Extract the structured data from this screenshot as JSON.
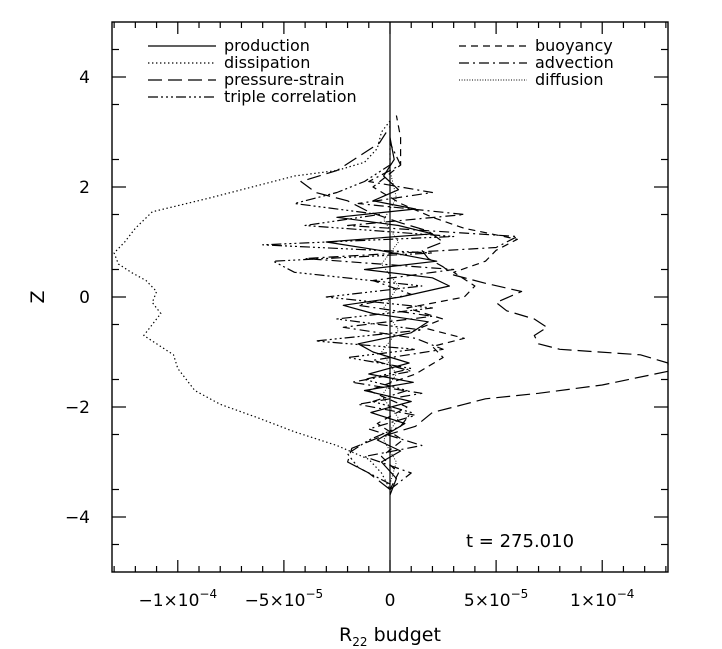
{
  "chart_data": {
    "type": "line",
    "title": "",
    "xlabel": "R",
    "xlabel_subscript": "22",
    "xlabel_suffix": " budget",
    "ylabel": "Z",
    "xlim": [
      -0.000131,
      0.000131
    ],
    "ylim": [
      -5,
      5
    ],
    "x_ticks": [
      {
        "value": -0.0001,
        "mantissa": "−1×10",
        "exp": "−4"
      },
      {
        "value": -5e-05,
        "mantissa": "−5×10",
        "exp": "−5"
      },
      {
        "value": 0,
        "mantissa": "0",
        "exp": ""
      },
      {
        "value": 5e-05,
        "mantissa": "5×10",
        "exp": "−5"
      },
      {
        "value": 0.0001,
        "mantissa": "1×10",
        "exp": "−4"
      }
    ],
    "y_ticks": [
      {
        "value": -4,
        "label": "−4"
      },
      {
        "value": -2,
        "label": "−2"
      },
      {
        "value": 0,
        "label": "0"
      },
      {
        "value": 2,
        "label": "2"
      },
      {
        "value": 4,
        "label": "4"
      }
    ],
    "annotation": "t = 275.010",
    "grid": false,
    "legend_placement": "top",
    "series": [
      {
        "name": "production",
        "dash": "solid",
        "points": [
          [
            0,
            -3.6
          ],
          [
            3e-06,
            -3.3
          ],
          [
            -4e-06,
            -3.0
          ],
          [
            5e-06,
            -2.8
          ],
          [
            -6e-06,
            -2.6
          ],
          [
            7e-06,
            -2.3
          ],
          [
            -9e-06,
            -2.1
          ],
          [
            1e-05,
            -1.9
          ],
          [
            -1.2e-05,
            -1.7
          ],
          [
            1.1e-05,
            -1.55
          ],
          [
            -1e-05,
            -1.4
          ],
          [
            9e-06,
            -1.2
          ],
          [
            -8e-06,
            -1.0
          ],
          [
            -1.5e-05,
            -0.85
          ],
          [
            1e-05,
            -0.65
          ],
          [
            1.8e-05,
            -0.45
          ],
          [
            -8e-06,
            -0.3
          ],
          [
            -2.2e-05,
            -0.15
          ],
          [
            5e-06,
            0.0
          ],
          [
            2.8e-05,
            0.2
          ],
          [
            2e-05,
            0.35
          ],
          [
            -1.2e-05,
            0.5
          ],
          [
            2.2e-05,
            0.65
          ],
          [
            -5e-06,
            0.85
          ],
          [
            -3e-05,
            1.0
          ],
          [
            2e-05,
            1.15
          ],
          [
            4e-06,
            1.3
          ],
          [
            -2.5e-05,
            1.45
          ],
          [
            1.2e-05,
            1.6
          ],
          [
            -8e-06,
            1.75
          ],
          [
            4e-06,
            1.95
          ],
          [
            -3e-06,
            2.2
          ],
          [
            2e-06,
            2.5
          ],
          [
            0,
            2.9
          ],
          [
            0,
            3.2
          ]
        ]
      },
      {
        "name": "dissipation",
        "dash": "dotted",
        "points": [
          [
            0,
            3.2
          ],
          [
            -4e-06,
            3.0
          ],
          [
            -6e-06,
            2.7
          ],
          [
            -1.2e-05,
            2.45
          ],
          [
            -2.5e-05,
            2.3
          ],
          [
            -4.5e-05,
            2.2
          ],
          [
            -6.5e-05,
            2.0
          ],
          [
            -8.5e-05,
            1.8
          ],
          [
            -0.000112,
            1.55
          ],
          [
            -0.00012,
            1.25
          ],
          [
            -0.000125,
            1.0
          ],
          [
            -0.00013,
            0.8
          ],
          [
            -0.000128,
            0.6
          ],
          [
            -0.000122,
            0.45
          ],
          [
            -0.000115,
            0.3
          ],
          [
            -0.00011,
            0.1
          ],
          [
            -0.000112,
            -0.1
          ],
          [
            -0.000108,
            -0.3
          ],
          [
            -0.000112,
            -0.5
          ],
          [
            -0.000116,
            -0.7
          ],
          [
            -0.00011,
            -0.85
          ],
          [
            -0.000102,
            -1.05
          ],
          [
            -0.0001,
            -1.3
          ],
          [
            -9.6e-05,
            -1.5
          ],
          [
            -9.2e-05,
            -1.7
          ],
          [
            -8e-05,
            -1.95
          ],
          [
            -6.2e-05,
            -2.2
          ],
          [
            -4.5e-05,
            -2.45
          ],
          [
            -2.5e-05,
            -2.7
          ],
          [
            -1e-05,
            -2.95
          ],
          [
            -4e-06,
            -3.2
          ],
          [
            0,
            -3.5
          ]
        ]
      },
      {
        "name": "pressure-strain",
        "dash": "longdash",
        "points": [
          [
            0,
            -3.5
          ],
          [
            -1e-05,
            -3.2
          ],
          [
            -2e-05,
            -3.0
          ],
          [
            -1.8e-05,
            -2.75
          ],
          [
            -5e-06,
            -2.55
          ],
          [
            1.2e-05,
            -2.35
          ],
          [
            2e-05,
            -2.1
          ],
          [
            3.5e-05,
            -1.95
          ],
          [
            4.5e-05,
            -1.85
          ],
          [
            7e-05,
            -1.75
          ],
          [
            0.0001,
            -1.6
          ],
          [
            0.000131,
            -1.35
          ],
          [
            0.000131,
            -1.2
          ],
          [
            0.000118,
            -1.05
          ],
          [
            8e-05,
            -0.95
          ],
          [
            7e-05,
            -0.85
          ],
          [
            6.8e-05,
            -0.7
          ],
          [
            7.4e-05,
            -0.55
          ],
          [
            6.8e-05,
            -0.4
          ],
          [
            5.5e-05,
            -0.25
          ],
          [
            5e-05,
            -0.1
          ],
          [
            6.2e-05,
            0.1
          ],
          [
            4.5e-05,
            0.25
          ],
          [
            3e-05,
            0.4
          ],
          [
            2.5e-05,
            0.55
          ],
          [
            1.8e-05,
            0.7
          ],
          [
            1.5e-05,
            0.85
          ],
          [
            2.5e-05,
            1.0
          ],
          [
            1.8e-05,
            1.2
          ],
          [
            5e-06,
            1.35
          ],
          [
            -1e-05,
            1.55
          ],
          [
            -2e-05,
            1.75
          ],
          [
            -3.5e-05,
            1.9
          ],
          [
            -4.2e-05,
            2.1
          ],
          [
            -2.5e-05,
            2.3
          ],
          [
            -1.5e-05,
            2.55
          ],
          [
            -5e-06,
            2.8
          ],
          [
            0,
            3.1
          ]
        ]
      },
      {
        "name": "triple correlation",
        "dash": "dashdotdotdot",
        "points": [
          [
            0,
            -3.4
          ],
          [
            -1.5e-05,
            -3.1
          ],
          [
            -2e-05,
            -2.85
          ],
          [
            -1e-05,
            -2.6
          ],
          [
            5e-06,
            -2.35
          ],
          [
            1e-05,
            -2.1
          ],
          [
            -8e-06,
            -1.9
          ],
          [
            8e-06,
            -1.7
          ],
          [
            -1.2e-05,
            -1.5
          ],
          [
            1e-05,
            -1.3
          ],
          [
            -2e-05,
            -1.1
          ],
          [
            1.2e-05,
            -0.95
          ],
          [
            -3.5e-05,
            -0.8
          ],
          [
            1.5e-05,
            -0.6
          ],
          [
            -2.5e-05,
            -0.4
          ],
          [
            2e-05,
            -0.2
          ],
          [
            -3e-05,
            0.0
          ],
          [
            1.5e-05,
            0.2
          ],
          [
            -4.5e-05,
            0.45
          ],
          [
            -5.5e-05,
            0.65
          ],
          [
            2e-05,
            0.8
          ],
          [
            -6e-05,
            0.95
          ],
          [
            3e-05,
            1.1
          ],
          [
            -4e-05,
            1.3
          ],
          [
            -5e-06,
            1.5
          ],
          [
            -4.5e-05,
            1.7
          ],
          [
            -2.5e-05,
            1.9
          ],
          [
            -1.2e-05,
            2.1
          ],
          [
            0,
            2.4
          ],
          [
            0,
            2.9
          ]
        ]
      },
      {
        "name": "buoyancy",
        "dash": "shortdash",
        "points": [
          [
            0,
            -3.5
          ],
          [
            4e-06,
            -3.2
          ],
          [
            -4e-06,
            -2.9
          ],
          [
            6e-06,
            -2.6
          ],
          [
            -6e-06,
            -2.3
          ],
          [
            8e-06,
            -2.0
          ],
          [
            -1e-05,
            -1.7
          ],
          [
            1.2e-05,
            -1.4
          ],
          [
            2.5e-05,
            -1.1
          ],
          [
            2e-05,
            -0.9
          ],
          [
            3.5e-05,
            -0.75
          ],
          [
            1.5e-05,
            -0.55
          ],
          [
            2.5e-05,
            -0.4
          ],
          [
            8e-06,
            -0.2
          ],
          [
            3.5e-05,
            0.0
          ],
          [
            4e-05,
            0.2
          ],
          [
            3e-05,
            0.45
          ],
          [
            4.5e-05,
            0.65
          ],
          [
            5e-05,
            0.85
          ],
          [
            6e-05,
            1.05
          ],
          [
            3.5e-05,
            1.25
          ],
          [
            2e-05,
            1.45
          ],
          [
            5e-06,
            1.7
          ],
          [
            -8e-06,
            2.0
          ],
          [
            5e-06,
            2.4
          ],
          [
            5e-06,
            2.9
          ],
          [
            3e-06,
            3.3
          ]
        ]
      },
      {
        "name": "advection",
        "dash": "dashdot",
        "points": [
          [
            0,
            -3.5
          ],
          [
            1e-05,
            -3.2
          ],
          [
            -1.2e-05,
            -2.9
          ],
          [
            1.5e-05,
            -2.7
          ],
          [
            -1e-05,
            -2.4
          ],
          [
            1.2e-05,
            -2.15
          ],
          [
            -1.5e-05,
            -1.95
          ],
          [
            1.5e-05,
            -1.75
          ],
          [
            -1.8e-05,
            -1.55
          ],
          [
            1e-05,
            -1.35
          ],
          [
            -8e-06,
            -1.15
          ],
          [
            2.5e-05,
            -0.95
          ],
          [
            1.2e-05,
            -0.75
          ],
          [
            -2.2e-05,
            -0.55
          ],
          [
            2e-05,
            -0.35
          ],
          [
            -1.5e-05,
            -0.15
          ],
          [
            1e-05,
            0.05
          ],
          [
            -8e-06,
            0.3
          ],
          [
            3e-05,
            0.5
          ],
          [
            -4e-05,
            0.7
          ],
          [
            5e-05,
            0.9
          ],
          [
            6e-05,
            1.1
          ],
          [
            -2e-05,
            1.3
          ],
          [
            3.5e-05,
            1.5
          ],
          [
            -1.5e-05,
            1.7
          ],
          [
            2e-05,
            1.9
          ],
          [
            -1e-05,
            2.1
          ],
          [
            5e-06,
            2.4
          ],
          [
            0,
            2.8
          ]
        ]
      },
      {
        "name": "diffusion",
        "dash": "finedot",
        "points": [
          [
            0,
            -3.4
          ],
          [
            3e-06,
            -3.0
          ],
          [
            -3e-06,
            -2.6
          ],
          [
            4e-06,
            -2.2
          ],
          [
            -4e-06,
            -1.8
          ],
          [
            3e-06,
            -1.4
          ],
          [
            -4e-06,
            -1.0
          ],
          [
            4e-06,
            -0.6
          ],
          [
            -3e-06,
            -0.2
          ],
          [
            4e-06,
            0.2
          ],
          [
            -4e-06,
            0.6
          ],
          [
            4e-06,
            1.0
          ],
          [
            -3e-06,
            1.4
          ],
          [
            3e-06,
            1.8
          ],
          [
            0,
            2.3
          ],
          [
            0,
            2.9
          ]
        ]
      }
    ]
  }
}
